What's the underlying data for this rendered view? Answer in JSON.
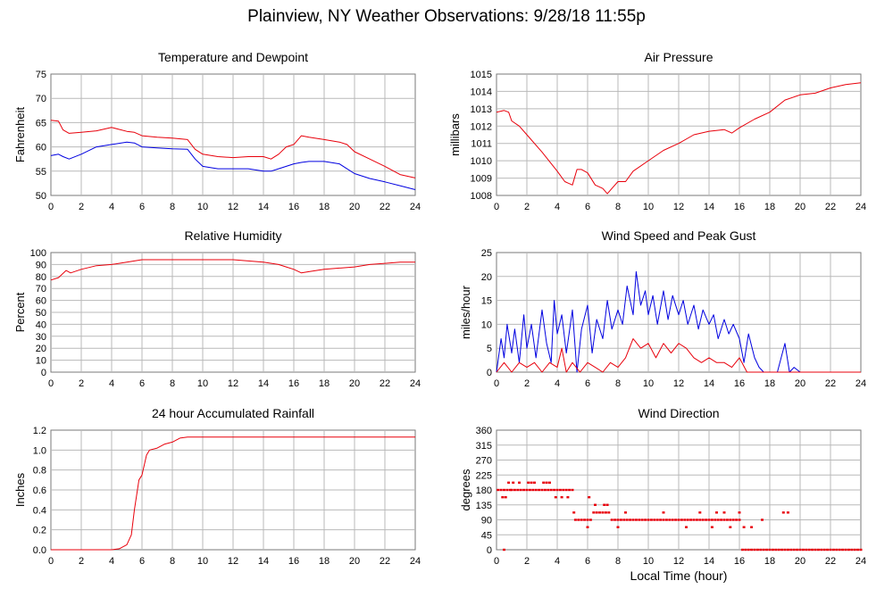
{
  "page": {
    "title": "Plainview, NY Weather Observations: 9/28/18 11:55p"
  },
  "colors": {
    "red": "#e8000b",
    "blue": "#0000e0"
  },
  "chart_data": [
    {
      "id": "temp",
      "type": "line",
      "title": "Temperature and Dewpoint",
      "xlabel": "",
      "ylabel": "Fahrenheit",
      "xlim": [
        0,
        24
      ],
      "ylim": [
        50,
        75
      ],
      "xticks": [
        "0",
        "2",
        "4",
        "6",
        "8",
        "10",
        "12",
        "14",
        "16",
        "18",
        "20",
        "22",
        "24"
      ],
      "yticks": [
        "50",
        "55",
        "60",
        "65",
        "70",
        "75"
      ],
      "grid": true,
      "series": [
        {
          "color": "red",
          "x": [
            0,
            0.5,
            0.8,
            1.2,
            2,
            3,
            4,
            4.5,
            5,
            5.5,
            6,
            7,
            8,
            9,
            9.5,
            10,
            11,
            12,
            13,
            14,
            14.5,
            15,
            15.5,
            16,
            16.5,
            17,
            18,
            19,
            19.5,
            20,
            21,
            22,
            23,
            24
          ],
          "y": [
            65.5,
            65.3,
            63.5,
            62.8,
            63,
            63.3,
            64,
            63.6,
            63.2,
            63,
            62.3,
            62,
            61.8,
            61.5,
            59.5,
            58.5,
            58,
            57.8,
            58,
            58,
            57.5,
            58.5,
            60,
            60.5,
            62.3,
            62,
            61.5,
            61,
            60.5,
            59,
            57.5,
            56,
            54.3,
            53.6
          ]
        },
        {
          "color": "blue",
          "x": [
            0,
            0.5,
            0.8,
            1.2,
            2,
            3,
            4,
            5,
            5.5,
            6,
            7,
            8,
            9,
            9.5,
            10,
            11,
            12,
            13,
            14,
            14.5,
            15,
            15.5,
            16,
            16.5,
            17,
            18,
            19,
            19.5,
            20,
            21,
            22,
            23,
            24
          ],
          "y": [
            58.2,
            58.5,
            58,
            57.5,
            58.5,
            60,
            60.5,
            61,
            60.8,
            60,
            59.8,
            59.6,
            59.5,
            57.5,
            56,
            55.5,
            55.5,
            55.5,
            55,
            55,
            55.5,
            56,
            56.5,
            56.8,
            57,
            57,
            56.5,
            55.5,
            54.5,
            53.5,
            52.8,
            52,
            51.2
          ]
        }
      ]
    },
    {
      "id": "pressure",
      "type": "line",
      "title": "Air Pressure",
      "xlabel": "",
      "ylabel": "millibars",
      "xlim": [
        0,
        24
      ],
      "ylim": [
        1008,
        1015
      ],
      "xticks": [
        "0",
        "2",
        "4",
        "6",
        "8",
        "10",
        "12",
        "14",
        "16",
        "18",
        "20",
        "22",
        "24"
      ],
      "yticks": [
        "1008",
        "1009",
        "1010",
        "1011",
        "1012",
        "1013",
        "1014",
        "1015"
      ],
      "grid": true,
      "series": [
        {
          "color": "red",
          "x": [
            0,
            0.5,
            0.8,
            1,
            1.5,
            2,
            3,
            4,
            4.5,
            5,
            5.3,
            5.6,
            6,
            6.5,
            7,
            7.3,
            7.6,
            8,
            8.5,
            9,
            10,
            11,
            12,
            13,
            14,
            15,
            15.5,
            16,
            17,
            18,
            19,
            20,
            21,
            22,
            23,
            24
          ],
          "y": [
            1012.8,
            1012.9,
            1012.8,
            1012.3,
            1012,
            1011.5,
            1010.5,
            1009.4,
            1008.8,
            1008.6,
            1009.5,
            1009.5,
            1009.3,
            1008.6,
            1008.4,
            1008.1,
            1008.4,
            1008.8,
            1008.8,
            1009.4,
            1010,
            1010.6,
            1011,
            1011.5,
            1011.7,
            1011.8,
            1011.6,
            1011.9,
            1012.4,
            1012.8,
            1013.5,
            1013.8,
            1013.9,
            1014.2,
            1014.4,
            1014.5
          ]
        }
      ]
    },
    {
      "id": "humidity",
      "type": "line",
      "title": "Relative Humidity",
      "xlabel": "",
      "ylabel": "Percent",
      "xlim": [
        0,
        24
      ],
      "ylim": [
        0,
        100
      ],
      "xticks": [
        "0",
        "2",
        "4",
        "6",
        "8",
        "10",
        "12",
        "14",
        "16",
        "18",
        "20",
        "22",
        "24"
      ],
      "yticks": [
        "0",
        "10",
        "20",
        "30",
        "40",
        "50",
        "60",
        "70",
        "80",
        "90",
        "100"
      ],
      "grid": true,
      "series": [
        {
          "color": "red",
          "x": [
            0,
            0.5,
            1,
            1.3,
            2,
            3,
            4,
            5,
            6,
            8,
            10,
            12,
            13,
            14,
            15,
            15.5,
            16,
            16.5,
            17,
            18,
            19,
            20,
            21,
            22,
            23,
            24
          ],
          "y": [
            77,
            79,
            85,
            83,
            86,
            89,
            90,
            92,
            94,
            94,
            94,
            94,
            93,
            92,
            90,
            88,
            86,
            83,
            84,
            86,
            87,
            88,
            90,
            91,
            92,
            92
          ]
        }
      ]
    },
    {
      "id": "wind",
      "type": "line",
      "title": "Wind Speed and Peak Gust",
      "xlabel": "",
      "ylabel": "miles/hour",
      "xlim": [
        0,
        24
      ],
      "ylim": [
        0,
        25
      ],
      "xticks": [
        "0",
        "2",
        "4",
        "6",
        "8",
        "10",
        "12",
        "14",
        "16",
        "18",
        "20",
        "22",
        "24"
      ],
      "yticks": [
        "0",
        "5",
        "10",
        "15",
        "20",
        "25"
      ],
      "grid": true,
      "series": [
        {
          "color": "blue",
          "x": [
            0,
            0.3,
            0.5,
            0.7,
            1,
            1.2,
            1.5,
            1.8,
            2,
            2.3,
            2.6,
            3,
            3.3,
            3.6,
            3.8,
            4,
            4.3,
            4.6,
            5,
            5.3,
            5.6,
            6,
            6.3,
            6.6,
            7,
            7.3,
            7.6,
            8,
            8.3,
            8.6,
            9,
            9.2,
            9.5,
            9.8,
            10,
            10.3,
            10.6,
            11,
            11.3,
            11.6,
            12,
            12.3,
            12.6,
            13,
            13.3,
            13.6,
            14,
            14.3,
            14.6,
            15,
            15.3,
            15.6,
            16,
            16.3,
            16.6,
            17,
            17.3,
            17.6,
            18,
            18.5,
            19,
            19.3,
            19.6,
            20,
            21,
            22,
            23,
            24
          ],
          "y": [
            0,
            7,
            3,
            10,
            4,
            9,
            2,
            12,
            5,
            10,
            3,
            13,
            6,
            2,
            15,
            8,
            12,
            4,
            13,
            0,
            9,
            14,
            4,
            11,
            7,
            15,
            9,
            13,
            10,
            18,
            12,
            21,
            14,
            17,
            12,
            16,
            10,
            17,
            11,
            16,
            12,
            15,
            10,
            14,
            9,
            13,
            10,
            12,
            7,
            11,
            8,
            10,
            7,
            2,
            8,
            3,
            1,
            0,
            0,
            0,
            6,
            0,
            1,
            0,
            0,
            0,
            0,
            0
          ]
        },
        {
          "color": "red",
          "x": [
            0,
            0.5,
            1,
            1.5,
            2,
            2.5,
            3,
            3.5,
            4,
            4.3,
            4.6,
            5,
            5.5,
            6,
            6.5,
            7,
            7.5,
            8,
            8.5,
            9,
            9.5,
            10,
            10.5,
            11,
            11.5,
            12,
            12.5,
            13,
            13.5,
            14,
            14.5,
            15,
            15.5,
            16,
            16.5,
            17,
            18,
            20,
            22,
            24
          ],
          "y": [
            0,
            2,
            0,
            2,
            1,
            2,
            0,
            2,
            1,
            5,
            0,
            2,
            0,
            2,
            1,
            0,
            2,
            1,
            3,
            7,
            5,
            6,
            3,
            6,
            4,
            6,
            5,
            3,
            2,
            3,
            2,
            2,
            1,
            3,
            0,
            0,
            0,
            0,
            0,
            0
          ]
        }
      ]
    },
    {
      "id": "rain",
      "type": "line",
      "title": "24 hour Accumulated Rainfall",
      "xlabel": "",
      "ylabel": "Inches",
      "xlim": [
        0,
        24
      ],
      "ylim": [
        0,
        1.2
      ],
      "xticks": [
        "0",
        "2",
        "4",
        "6",
        "8",
        "10",
        "12",
        "14",
        "16",
        "18",
        "20",
        "22",
        "24"
      ],
      "yticks": [
        "0.0",
        "0.2",
        "0.4",
        "0.6",
        "0.8",
        "1.0",
        "1.2"
      ],
      "grid": true,
      "series": [
        {
          "color": "red",
          "x": [
            0,
            4,
            4.5,
            5,
            5.3,
            5.5,
            5.8,
            6,
            6.3,
            6.5,
            7,
            7.5,
            8,
            8.5,
            9,
            12,
            16,
            20,
            24
          ],
          "y": [
            0,
            0,
            0.01,
            0.05,
            0.15,
            0.4,
            0.7,
            0.75,
            0.95,
            1.0,
            1.02,
            1.06,
            1.08,
            1.12,
            1.13,
            1.13,
            1.13,
            1.13,
            1.13
          ]
        }
      ]
    },
    {
      "id": "direction",
      "type": "scatter",
      "title": "Wind Direction",
      "xlabel": "Local Time (hour)",
      "ylabel": "degrees",
      "xlim": [
        0,
        24
      ],
      "ylim": [
        0,
        360
      ],
      "xticks": [
        "0",
        "2",
        "4",
        "6",
        "8",
        "10",
        "12",
        "14",
        "16",
        "18",
        "20",
        "22",
        "24"
      ],
      "yticks": [
        "0",
        "45",
        "90",
        "135",
        "180",
        "225",
        "270",
        "315",
        "360"
      ],
      "grid": true,
      "series": [
        {
          "color": "red",
          "x": [
            0.1,
            0.3,
            0.5,
            0.7,
            0.9,
            1.0,
            1.2,
            1.4,
            1.6,
            1.8,
            2.0,
            2.2,
            2.4,
            2.6,
            2.8,
            3.0,
            3.2,
            3.4,
            3.6,
            3.8,
            4.0,
            4.2,
            4.4,
            4.6,
            4.8,
            5.0,
            0.4,
            0.6,
            0.8,
            1.1,
            1.5,
            2.1,
            2.3,
            2.5,
            3.1,
            3.3,
            3.5,
            3.9,
            4.3,
            4.7,
            5.2,
            5.4,
            5.6,
            5.8,
            6.0,
            6.2,
            6.4,
            6.6,
            6.8,
            7.0,
            7.2,
            7.4,
            7.6,
            7.8,
            8.0,
            8.2,
            8.4,
            8.6,
            8.8,
            9.0,
            9.2,
            9.4,
            9.6,
            9.8,
            10.0,
            10.2,
            10.4,
            10.6,
            10.8,
            11.0,
            11.2,
            11.4,
            11.6,
            11.8,
            12.0,
            12.2,
            12.4,
            12.6,
            12.8,
            13.0,
            13.2,
            13.4,
            13.6,
            13.8,
            14.0,
            14.2,
            14.4,
            14.6,
            14.8,
            15.0,
            15.2,
            15.4,
            15.6,
            15.8,
            16.0,
            16.2,
            16.4,
            16.6,
            16.8,
            17.0,
            17.2,
            17.4,
            17.6,
            17.8,
            18.0,
            18.2,
            18.4,
            18.6,
            18.8,
            19.0,
            19.2,
            19.4,
            19.6,
            19.8,
            20.0,
            20.2,
            20.4,
            20.6,
            20.8,
            21.0,
            21.2,
            21.4,
            21.6,
            21.8,
            22.0,
            22.2,
            22.4,
            22.6,
            22.8,
            23.0,
            23.2,
            23.4,
            23.6,
            23.8,
            24.0,
            5.1,
            6.1,
            6.5,
            7.1,
            7.3,
            8.5,
            11.0,
            13.4,
            14.5,
            15.0,
            16.0,
            17.5,
            18.9,
            19.2,
            0.5,
            6.0,
            8.0,
            12.5,
            14.2,
            15.4,
            16.3,
            16.8
          ],
          "y": [
            180,
            180,
            180,
            180,
            180,
            180,
            180,
            180,
            180,
            180,
            180,
            180,
            180,
            180,
            180,
            180,
            180,
            180,
            180,
            180,
            180,
            180,
            180,
            180,
            180,
            180,
            158,
            158,
            202,
            202,
            202,
            202,
            202,
            202,
            202,
            202,
            202,
            158,
            158,
            158,
            90,
            90,
            90,
            90,
            90,
            90,
            112,
            112,
            112,
            112,
            112,
            112,
            90,
            90,
            90,
            90,
            90,
            90,
            90,
            90,
            90,
            90,
            90,
            90,
            90,
            90,
            90,
            90,
            90,
            90,
            90,
            90,
            90,
            90,
            90,
            90,
            90,
            90,
            90,
            90,
            90,
            90,
            90,
            90,
            90,
            90,
            90,
            90,
            90,
            90,
            90,
            90,
            90,
            90,
            90,
            0,
            0,
            0,
            0,
            0,
            0,
            0,
            0,
            0,
            0,
            0,
            0,
            0,
            0,
            0,
            0,
            0,
            0,
            0,
            0,
            0,
            0,
            0,
            0,
            0,
            0,
            0,
            0,
            0,
            0,
            0,
            0,
            0,
            0,
            0,
            0,
            0,
            0,
            0,
            0,
            112,
            158,
            135,
            135,
            135,
            112,
            112,
            112,
            112,
            112,
            112,
            90,
            112,
            112,
            0,
            68,
            68,
            68,
            68,
            68,
            68,
            68
          ]
        }
      ]
    }
  ]
}
